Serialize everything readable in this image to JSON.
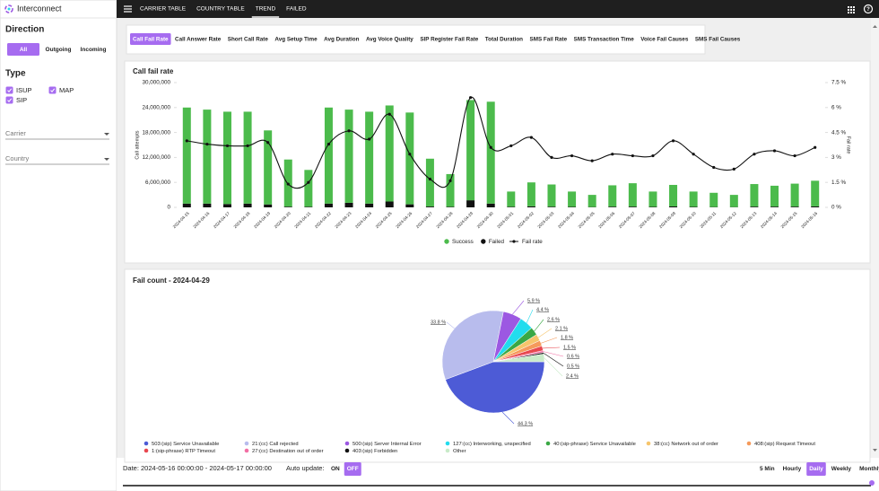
{
  "app": {
    "title": "Interconnect"
  },
  "sidebar": {
    "direction_title": "Direction",
    "direction_options": [
      "All",
      "Outgoing",
      "Incoming"
    ],
    "direction_active": 0,
    "type_title": "Type",
    "types": [
      {
        "label": "ISUP",
        "checked": true
      },
      {
        "label": "MAP",
        "checked": true
      },
      {
        "label": "SIP",
        "checked": true
      }
    ],
    "filters": [
      "Carrier",
      "Country"
    ]
  },
  "nav": {
    "items": [
      "CARRIER TABLE",
      "COUNTRY TABLE",
      "TREND",
      "FAILED"
    ],
    "active": 2
  },
  "metric_tabs": {
    "items": [
      "Call Fail Rate",
      "Call Answer Rate",
      "Short Call Rate",
      "Avg Setup Time",
      "Avg Duration",
      "Avg Voice Quality",
      "SIP Register Fail Rate",
      "Total Duration",
      "SMS Fail Rate",
      "SMS Transaction Time",
      "Voice Fail Causes",
      "SMS Fail Causes"
    ],
    "active": 0
  },
  "trend_chart": {
    "type": "bar_line",
    "title": "Call fail rate",
    "ylabel": "Call attempts",
    "y2label": "Fail rate",
    "categories": [
      "2024-04-15",
      "2024-04-16",
      "2024-04-17",
      "2024-04-18",
      "2024-04-19",
      "2024-04-20",
      "2024-04-21",
      "2024-04-22",
      "2024-04-23",
      "2024-04-24",
      "2024-04-25",
      "2024-04-26",
      "2024-04-27",
      "2024-04-28",
      "2024-04-29",
      "2024-04-30",
      "2024-05-01",
      "2024-05-02",
      "2024-05-03",
      "2024-05-04",
      "2024-05-05",
      "2024-05-06",
      "2024-05-07",
      "2024-05-08",
      "2024-05-09",
      "2024-05-10",
      "2024-05-11",
      "2024-05-12",
      "2024-05-13",
      "2024-05-14",
      "2024-05-15",
      "2024-05-16"
    ],
    "series": [
      {
        "name": "Success",
        "color": "#4cbb4c",
        "values": [
          23100000,
          22600000,
          22200000,
          22100000,
          17800000,
          11330000,
          8860000,
          23100000,
          22400000,
          22100000,
          23100000,
          22070000,
          11500000,
          7870000,
          24100000,
          24500000,
          3660000,
          5750000,
          5340000,
          3680000,
          2920000,
          5130000,
          5620000,
          3680000,
          5180000,
          3680000,
          3420000,
          2930000,
          5420000,
          5020000,
          5520000,
          6170000
        ]
      },
      {
        "name": "Failed",
        "color": "#111111",
        "values": [
          900000,
          900000,
          800000,
          900000,
          700000,
          170000,
          140000,
          900000,
          1100000,
          900000,
          1400000,
          730000,
          200000,
          130000,
          1700000,
          900000,
          140000,
          250000,
          160000,
          120000,
          80000,
          170000,
          180000,
          120000,
          220000,
          120000,
          80000,
          70000,
          180000,
          180000,
          180000,
          230000
        ]
      },
      {
        "name": "Fail rate",
        "color": "#111111",
        "axis": "y2",
        "values": [
          4.0,
          3.8,
          3.7,
          3.7,
          3.9,
          1.4,
          1.5,
          3.8,
          4.6,
          4.1,
          5.6,
          3.2,
          1.7,
          1.6,
          6.6,
          3.6,
          3.7,
          4.2,
          3.0,
          3.1,
          2.8,
          3.2,
          3.1,
          3.1,
          4.0,
          3.2,
          2.4,
          2.3,
          3.2,
          3.4,
          3.1,
          3.6
        ]
      }
    ],
    "ylim": [
      0,
      30000000
    ],
    "yticks": [
      0,
      {
        "value": 6000000,
        "label": "6,000,000"
      },
      {
        "value": 12000000,
        "label": "12,000,000"
      },
      {
        "value": 18000000,
        "label": "18,000,000"
      },
      {
        "value": 24000000,
        "label": "24,000,000"
      },
      {
        "value": 30000000,
        "label": "30,000,000"
      }
    ],
    "y2lim": [
      0,
      7.5
    ],
    "y2ticks": [
      {
        "value": 0,
        "label": "0 %"
      },
      {
        "value": 1.5,
        "label": "1.5 %"
      },
      {
        "value": 3,
        "label": "3 %"
      },
      {
        "value": 4.5,
        "label": "4.5 %"
      },
      {
        "value": 6,
        "label": "6 %"
      },
      {
        "value": 7.5,
        "label": "7.5 %"
      }
    ]
  },
  "pie_chart": {
    "type": "pie",
    "title": "Fail count - 2024-04-29",
    "categories": [
      "503:(sip) Service Unavailable",
      "21:(cc) Call rejected",
      "500:(sip) Server Internal Error",
      "127:(cc) Interworking, unspecified",
      "40:(sip-phrase) Service Unavailable",
      "38:(cc) Network out of order",
      "408:(sip) Request Timeout",
      "1:(sip-phrase) RTP Timeout",
      "27:(cc) Destination out of order",
      "403:(sip) Forbidden",
      "Other"
    ],
    "values": [
      44.3,
      33.8,
      5.9,
      4.4,
      2.6,
      2.1,
      1.8,
      1.5,
      0.6,
      0.5,
      2.4
    ],
    "value_labels": [
      "44.3 %",
      "33.8 %",
      "5.9 %",
      "4.4 %",
      "2.6 %",
      "2.1 %",
      "1.8 %",
      "1.5 %",
      "0.6 %",
      "0.5 %",
      "2.4 %"
    ],
    "colors": [
      "#4d5bd6",
      "#b8bced",
      "#9c58e2",
      "#22dcee",
      "#3aa845",
      "#f6c56c",
      "#f59a5b",
      "#e8474f",
      "#f26ea4",
      "#111111",
      "#c9ebc9"
    ]
  },
  "footer": {
    "date_label": "Date: 2024-05-16 00:00:00 - 2024-05-17 00:00:00",
    "auto_update_label": "Auto update:",
    "toggle": [
      "ON",
      "OFF"
    ],
    "toggle_active": 1,
    "granularity": [
      "5 Min",
      "Hourly",
      "Daily",
      "Weekly",
      "Monthly"
    ],
    "granularity_active": 2
  }
}
